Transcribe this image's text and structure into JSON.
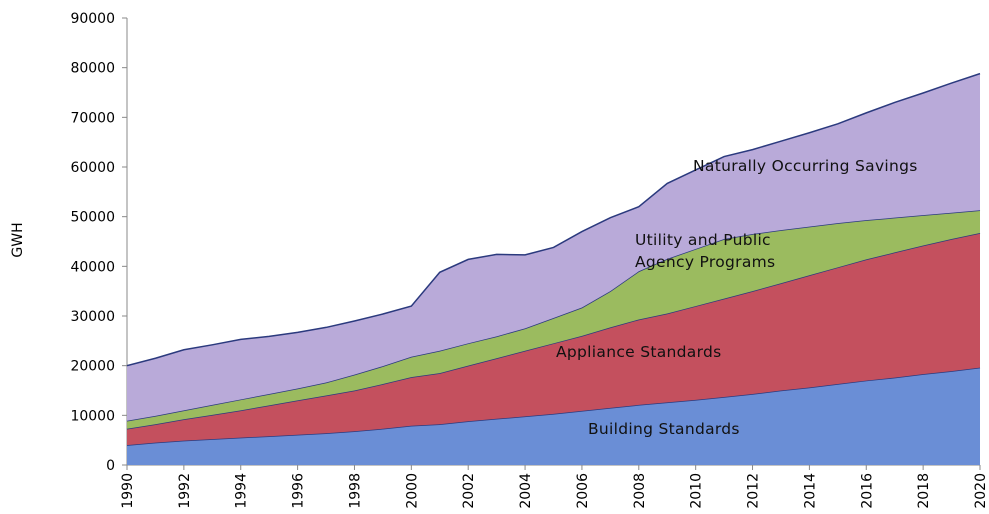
{
  "chart_data": {
    "type": "stacked_area",
    "y_label": "GWH",
    "x": [
      1990,
      1991,
      1992,
      1993,
      1994,
      1995,
      1996,
      1997,
      1998,
      1999,
      2000,
      2001,
      2002,
      2003,
      2004,
      2005,
      2006,
      2007,
      2008,
      2009,
      2010,
      2011,
      2012,
      2013,
      2014,
      2015,
      2016,
      2017,
      2018,
      2019,
      2020
    ],
    "xlim": [
      1990,
      2020
    ],
    "xticks": [
      1990,
      1992,
      1994,
      1996,
      1998,
      2000,
      2002,
      2004,
      2006,
      2008,
      2010,
      2012,
      2014,
      2016,
      2018,
      2020
    ],
    "ylim": [
      0,
      90000
    ],
    "yticks": [
      0,
      10000,
      20000,
      30000,
      40000,
      50000,
      60000,
      70000,
      80000,
      90000
    ],
    "grid": false,
    "series": [
      {
        "name": "Building Standards",
        "color": "#6a8ed6",
        "values": [
          4000,
          4500,
          4900,
          5200,
          5500,
          5800,
          6100,
          6400,
          6800,
          7300,
          7900,
          8200,
          8800,
          9300,
          9800,
          10300,
          10900,
          11500,
          12100,
          12600,
          13100,
          13700,
          14300,
          15000,
          15600,
          16300,
          17000,
          17600,
          18300,
          18900,
          19600
        ]
      },
      {
        "name": "Appliance Standards",
        "color": "#c4505e",
        "values": [
          3300,
          3700,
          4300,
          4900,
          5500,
          6200,
          6900,
          7600,
          8200,
          9000,
          9800,
          10300,
          11200,
          12200,
          13200,
          14200,
          15100,
          16200,
          17200,
          17900,
          18900,
          19800,
          20700,
          21600,
          22600,
          23500,
          24400,
          25200,
          25900,
          26600,
          27100
        ]
      },
      {
        "name": "Utility and Public Agency Programs",
        "color": "#9bbb5f",
        "values": [
          1600,
          1700,
          1800,
          2000,
          2200,
          2300,
          2400,
          2600,
          3200,
          3600,
          4100,
          4500,
          4500,
          4400,
          4500,
          5100,
          5700,
          7300,
          9700,
          11000,
          11500,
          12000,
          11500,
          10700,
          9800,
          8900,
          7900,
          7000,
          6100,
          5300,
          4600
        ]
      },
      {
        "name": "Naturally Occurring Savings",
        "color": "#b9aad9",
        "values": [
          11100,
          11600,
          12200,
          12100,
          12100,
          11600,
          11300,
          11100,
          10800,
          10500,
          10200,
          15800,
          16900,
          16500,
          14800,
          14200,
          15300,
          14800,
          13000,
          15200,
          15900,
          16600,
          17000,
          17900,
          18900,
          20000,
          21600,
          23200,
          24600,
          26100,
          27500
        ]
      }
    ]
  }
}
